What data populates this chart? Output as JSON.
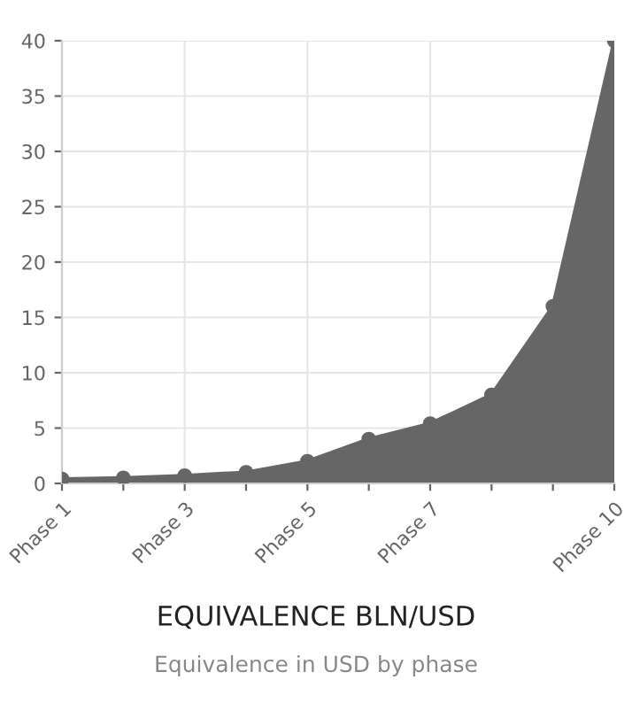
{
  "chart_data": {
    "type": "area",
    "title": "EQUIVALENCE BLN/USD",
    "subtitle": "Equivalence in USD by phase",
    "categories": [
      "Phase 1",
      null,
      "Phase 3",
      null,
      "Phase 5",
      null,
      "Phase 7",
      null,
      null,
      "Phase 10"
    ],
    "series": [
      {
        "color": "#666666",
        "values": [
          0.4,
          0.5,
          0.7,
          1.0,
          2.0,
          4.0,
          5.4,
          8.0,
          16,
          40
        ]
      }
    ],
    "ylim": [
      0,
      40
    ],
    "yticks": [
      0,
      5,
      10,
      15,
      20,
      25,
      30,
      35,
      40
    ],
    "grid": true,
    "marker": "circle"
  }
}
